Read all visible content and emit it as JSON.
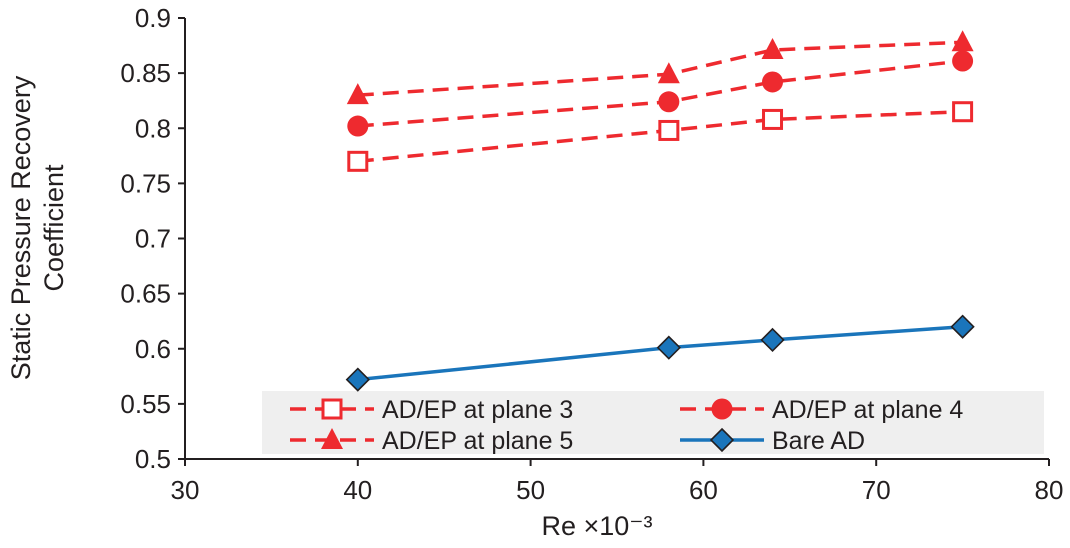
{
  "chart_data": {
    "type": "line",
    "xlabel": "Re ×10⁻³",
    "ylabel": [
      "Static Pressure Recovery",
      "Coefficient"
    ],
    "xlim": [
      30,
      80
    ],
    "ylim": [
      0.5,
      0.9
    ],
    "xticks": [
      30,
      40,
      50,
      60,
      70,
      80
    ],
    "yticks": [
      0.5,
      0.55,
      0.6,
      0.65,
      0.7,
      0.75,
      0.8,
      0.85,
      0.9
    ],
    "ytick_labels": [
      "0.5",
      "0.55",
      "0.6",
      "0.65",
      "0.7",
      "0.75",
      "0.8",
      "0.85",
      "0.9"
    ],
    "grid": false,
    "legend_position": "bottom",
    "series": [
      {
        "name": "AD/EP at plane 3",
        "x": [
          40,
          58,
          64,
          75
        ],
        "values": [
          0.77,
          0.798,
          0.808,
          0.815
        ],
        "color": "#ee2a2f",
        "line": "dashed",
        "marker": "open-square"
      },
      {
        "name": "AD/EP at plane 4",
        "x": [
          40,
          58,
          64,
          75
        ],
        "values": [
          0.802,
          0.824,
          0.842,
          0.861
        ],
        "color": "#ee2a2f",
        "line": "dashed",
        "marker": "circle"
      },
      {
        "name": "AD/EP at plane 5",
        "x": [
          40,
          58,
          64,
          75
        ],
        "values": [
          0.83,
          0.849,
          0.871,
          0.878
        ],
        "color": "#ee2a2f",
        "line": "dashed",
        "marker": "triangle"
      },
      {
        "name": "Bare AD",
        "x": [
          40,
          58,
          64,
          75
        ],
        "values": [
          0.572,
          0.601,
          0.608,
          0.62
        ],
        "color": "#1a75bb",
        "line": "solid",
        "marker": "diamond"
      }
    ]
  }
}
